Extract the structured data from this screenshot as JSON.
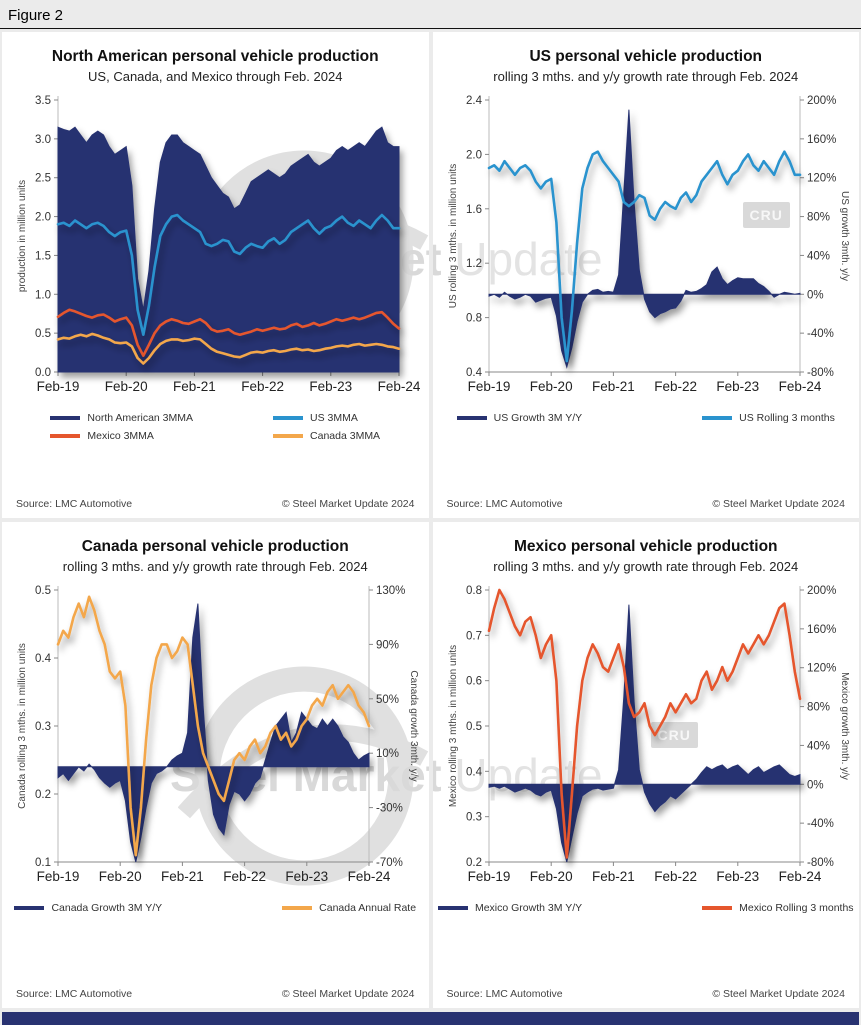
{
  "figure_label": "Figure 2",
  "footer_bar_color": "#283271",
  "watermark": {
    "bold": "Steel Market",
    "light": "Update",
    "cru": "CRU"
  },
  "panels": [
    {
      "title": "North American personal vehicle production",
      "subtitle": "US, Canada, and Mexico through Feb. 2024",
      "source": "Source: LMC Automotive",
      "copyright": "© Steel Market Update 2024"
    },
    {
      "title": "US personal vehicle production",
      "subtitle": "rolling 3 mths. and y/y growth rate through Feb. 2024",
      "source": "Source: LMC Automotive",
      "copyright": "© Steel Market Update 2024"
    },
    {
      "title": "Canada personal vehicle production",
      "subtitle": "rolling 3 mths. and y/y growth rate through Feb. 2024",
      "source": "Source: LMC Automotive",
      "copyright": "© Steel Market Update 2024"
    },
    {
      "title": "Mexico personal vehicle production",
      "subtitle": "rolling 3 mths. and y/y growth rate through Feb. 2024",
      "source": "Source: LMC Automotive",
      "copyright": "© Steel Market Update 2024"
    }
  ],
  "chart_data": [
    {
      "type": "area+line",
      "title": "North American personal vehicle production",
      "subtitle": "US, Canada, and Mexico through Feb. 2024",
      "x_tick_labels": [
        "Feb-19",
        "Feb-20",
        "Feb-21",
        "Feb-22",
        "Feb-23",
        "Feb-24"
      ],
      "x_tick_positions": [
        0,
        12,
        24,
        36,
        48,
        60
      ],
      "left_axis": {
        "label": "production in million units",
        "min": 0,
        "max": 3.5,
        "ticks": [
          0,
          0.5,
          1,
          1.5,
          2,
          2.5,
          3,
          3.5
        ],
        "tick_labels": [
          "0.0",
          "0.5",
          "1.0",
          "1.5",
          "2.0",
          "2.5",
          "3.0",
          "3.5"
        ]
      },
      "right_axis": null,
      "series": [
        {
          "name": "North American 3MMA",
          "type": "area",
          "axis": "left",
          "baseline": 0,
          "color": "#283271",
          "values": [
            3.15,
            3.12,
            3.1,
            3.15,
            3.05,
            2.95,
            3.05,
            3.1,
            3.05,
            2.9,
            2.8,
            2.85,
            2.9,
            2.4,
            1.2,
            0.8,
            1.3,
            2.1,
            2.7,
            2.95,
            3.05,
            3.05,
            2.95,
            2.9,
            2.85,
            2.8,
            2.65,
            2.5,
            2.4,
            2.3,
            2.25,
            2.1,
            2.15,
            2.3,
            2.45,
            2.5,
            2.55,
            2.6,
            2.55,
            2.5,
            2.55,
            2.65,
            2.7,
            2.75,
            2.8,
            2.7,
            2.65,
            2.7,
            2.75,
            2.85,
            2.9,
            2.85,
            2.9,
            2.95,
            2.9,
            3.0,
            3.1,
            3.15,
            2.95,
            2.9,
            2.9
          ]
        },
        {
          "name": "US 3MMA",
          "type": "line",
          "axis": "left",
          "color": "#2a93ce",
          "values": [
            1.9,
            1.92,
            1.88,
            1.95,
            1.9,
            1.85,
            1.9,
            1.92,
            1.88,
            1.8,
            1.75,
            1.8,
            1.82,
            1.5,
            0.8,
            0.48,
            0.85,
            1.35,
            1.75,
            1.9,
            2.0,
            2.02,
            1.95,
            1.9,
            1.85,
            1.8,
            1.65,
            1.62,
            1.65,
            1.7,
            1.68,
            1.55,
            1.52,
            1.6,
            1.65,
            1.62,
            1.6,
            1.68,
            1.72,
            1.65,
            1.7,
            1.8,
            1.85,
            1.9,
            1.95,
            1.85,
            1.78,
            1.85,
            1.88,
            1.95,
            2.0,
            1.92,
            1.88,
            1.95,
            1.9,
            1.85,
            1.95,
            2.02,
            1.95,
            1.85,
            1.85
          ]
        },
        {
          "name": "Mexico 3MMA",
          "type": "line",
          "axis": "left",
          "color": "#e5562d",
          "values": [
            0.71,
            0.76,
            0.8,
            0.78,
            0.75,
            0.72,
            0.7,
            0.73,
            0.74,
            0.7,
            0.65,
            0.68,
            0.7,
            0.6,
            0.35,
            0.21,
            0.35,
            0.5,
            0.6,
            0.65,
            0.68,
            0.66,
            0.63,
            0.62,
            0.65,
            0.68,
            0.63,
            0.55,
            0.52,
            0.53,
            0.55,
            0.5,
            0.48,
            0.5,
            0.52,
            0.55,
            0.53,
            0.55,
            0.57,
            0.55,
            0.56,
            0.6,
            0.62,
            0.58,
            0.6,
            0.63,
            0.6,
            0.62,
            0.65,
            0.68,
            0.66,
            0.68,
            0.7,
            0.68,
            0.7,
            0.73,
            0.76,
            0.77,
            0.7,
            0.62,
            0.56
          ]
        },
        {
          "name": "Canada 3MMA",
          "type": "line",
          "axis": "left",
          "color": "#f3a74b",
          "values": [
            0.42,
            0.44,
            0.43,
            0.46,
            0.48,
            0.46,
            0.49,
            0.47,
            0.44,
            0.42,
            0.38,
            0.37,
            0.38,
            0.33,
            0.18,
            0.11,
            0.18,
            0.28,
            0.36,
            0.4,
            0.42,
            0.42,
            0.4,
            0.41,
            0.43,
            0.42,
            0.36,
            0.3,
            0.26,
            0.24,
            0.22,
            0.2,
            0.19,
            0.22,
            0.25,
            0.26,
            0.25,
            0.27,
            0.28,
            0.26,
            0.27,
            0.29,
            0.3,
            0.28,
            0.29,
            0.27,
            0.28,
            0.3,
            0.31,
            0.33,
            0.34,
            0.33,
            0.35,
            0.36,
            0.34,
            0.35,
            0.36,
            0.35,
            0.33,
            0.32,
            0.3
          ]
        }
      ]
    },
    {
      "type": "area+line",
      "title": "US personal vehicle production",
      "subtitle": "rolling 3 mths. and y/y growth rate through Feb. 2024",
      "x_tick_labels": [
        "Feb-19",
        "Feb-20",
        "Feb-21",
        "Feb-22",
        "Feb-23",
        "Feb-24"
      ],
      "x_tick_positions": [
        0,
        12,
        24,
        36,
        48,
        60
      ],
      "left_axis": {
        "label": "US rolling 3 mths. in million units",
        "min": 0.4,
        "max": 2.4,
        "ticks": [
          0.4,
          0.8,
          1.2,
          1.6,
          2.0,
          2.4
        ],
        "tick_labels": [
          "0.4",
          "0.8",
          "1.2",
          "1.6",
          "2.0",
          "2.4"
        ]
      },
      "right_axis": {
        "label": "US growth 3mth. y/y",
        "min": -80,
        "max": 200,
        "ticks": [
          -80,
          -40,
          0,
          40,
          80,
          120,
          160,
          200
        ],
        "tick_labels": [
          "-80%",
          "-40%",
          "0%",
          "40%",
          "80%",
          "120%",
          "160%",
          "200%"
        ]
      },
      "series": [
        {
          "name": "US Growth 3M Y/Y",
          "type": "area",
          "axis": "right",
          "baseline": 0,
          "color": "#283271",
          "values": [
            -2,
            0,
            -3,
            2,
            -2,
            -5,
            -3,
            0,
            -2,
            -8,
            -6,
            -4,
            -3,
            -22,
            -58,
            -75,
            -55,
            -28,
            -8,
            0,
            4,
            5,
            2,
            3,
            2,
            20,
            105,
            190,
            95,
            25,
            -5,
            -18,
            -24,
            -20,
            -18,
            -15,
            -14,
            -7,
            4,
            2,
            3,
            6,
            10,
            23,
            28,
            16,
            10,
            14,
            17,
            16,
            16,
            16,
            11,
            8,
            3,
            -3,
            0,
            2,
            1,
            0,
            1
          ]
        },
        {
          "name": "US Rolling 3 months",
          "type": "line",
          "axis": "left",
          "color": "#2a93ce",
          "values": [
            1.9,
            1.92,
            1.88,
            1.95,
            1.9,
            1.85,
            1.9,
            1.92,
            1.88,
            1.8,
            1.75,
            1.8,
            1.82,
            1.5,
            0.8,
            0.48,
            0.85,
            1.35,
            1.75,
            1.9,
            2.0,
            2.02,
            1.95,
            1.9,
            1.85,
            1.8,
            1.65,
            1.62,
            1.65,
            1.7,
            1.68,
            1.55,
            1.52,
            1.6,
            1.65,
            1.62,
            1.6,
            1.68,
            1.72,
            1.65,
            1.7,
            1.8,
            1.85,
            1.9,
            1.95,
            1.85,
            1.78,
            1.85,
            1.88,
            1.95,
            2.0,
            1.92,
            1.88,
            1.95,
            1.9,
            1.85,
            1.95,
            2.02,
            1.95,
            1.85,
            1.85
          ]
        }
      ]
    },
    {
      "type": "area+line",
      "title": "Canada personal vehicle production",
      "subtitle": "rolling 3 mths. and y/y growth rate through Feb. 2024",
      "x_tick_labels": [
        "Feb-19",
        "Feb-20",
        "Feb-21",
        "Feb-22",
        "Feb-23",
        "Feb-24"
      ],
      "x_tick_positions": [
        0,
        12,
        24,
        36,
        48,
        60
      ],
      "left_axis": {
        "label": "Canada rolling 3 mths. in million units",
        "min": 0.1,
        "max": 0.5,
        "ticks": [
          0.1,
          0.2,
          0.3,
          0.4,
          0.5
        ],
        "tick_labels": [
          "0.1",
          "0.2",
          "0.3",
          "0.4",
          "0.5"
        ]
      },
      "right_axis": {
        "label": "Canada growth 3mth. y/y",
        "min": -70,
        "max": 130,
        "ticks": [
          -70,
          -30,
          10,
          50,
          90,
          130
        ],
        "tick_labels": [
          "-70%",
          "-30%",
          "10%",
          "50%",
          "90%",
          "130%"
        ]
      },
      "series": [
        {
          "name": "Canada Growth 3M Y/Y",
          "type": "area",
          "axis": "right",
          "baseline": 0,
          "color": "#283271",
          "values": [
            -8,
            -5,
            -10,
            -5,
            0,
            -3,
            2,
            -2,
            -8,
            -12,
            -15,
            -12,
            -10,
            -25,
            -55,
            -70,
            -52,
            -30,
            -12,
            -5,
            -3,
            0,
            5,
            8,
            10,
            25,
            95,
            120,
            45,
            -10,
            -35,
            -45,
            -50,
            -28,
            -18,
            -20,
            -25,
            -20,
            -12,
            -8,
            5,
            18,
            30,
            35,
            40,
            18,
            25,
            40,
            35,
            30,
            28,
            35,
            30,
            35,
            30,
            22,
            18,
            10,
            5,
            8,
            10
          ]
        },
        {
          "name": "Canada Annual Rate",
          "type": "line",
          "axis": "left",
          "color": "#f3a74b",
          "values": [
            0.42,
            0.44,
            0.43,
            0.46,
            0.48,
            0.46,
            0.49,
            0.47,
            0.44,
            0.42,
            0.38,
            0.37,
            0.38,
            0.33,
            0.18,
            0.11,
            0.18,
            0.28,
            0.36,
            0.4,
            0.42,
            0.42,
            0.4,
            0.41,
            0.43,
            0.42,
            0.36,
            0.3,
            0.26,
            0.24,
            0.22,
            0.2,
            0.19,
            0.22,
            0.25,
            0.26,
            0.25,
            0.27,
            0.28,
            0.26,
            0.27,
            0.29,
            0.3,
            0.28,
            0.29,
            0.27,
            0.28,
            0.3,
            0.31,
            0.33,
            0.34,
            0.33,
            0.35,
            0.36,
            0.34,
            0.35,
            0.36,
            0.35,
            0.33,
            0.32,
            0.3
          ]
        }
      ]
    },
    {
      "type": "area+line",
      "title": "Mexico personal vehicle production",
      "subtitle": "rolling 3 mths. and y/y growth rate through Feb. 2024",
      "x_tick_labels": [
        "Feb-19",
        "Feb-20",
        "Feb-21",
        "Feb-22",
        "Feb-23",
        "Feb-24"
      ],
      "x_tick_positions": [
        0,
        12,
        24,
        36,
        48,
        60
      ],
      "left_axis": {
        "label": "Mexico rolling 3 mths. in million units",
        "min": 0.2,
        "max": 0.8,
        "ticks": [
          0.2,
          0.3,
          0.4,
          0.5,
          0.6,
          0.7,
          0.8
        ],
        "tick_labels": [
          "0.2",
          "0.3",
          "0.4",
          "0.5",
          "0.6",
          "0.7",
          "0.8"
        ]
      },
      "right_axis": {
        "label": "Mexico growth 3mth. y/y",
        "min": -80,
        "max": 200,
        "ticks": [
          -80,
          -40,
          0,
          40,
          80,
          120,
          160,
          200
        ],
        "tick_labels": [
          "-80%",
          "-40%",
          "0%",
          "40%",
          "80%",
          "120%",
          "160%",
          "200%"
        ]
      },
      "series": [
        {
          "name": "Mexico Growth 3M Y/Y",
          "type": "area",
          "axis": "right",
          "baseline": 0,
          "color": "#283271",
          "values": [
            -3,
            -2,
            -4,
            -2,
            -5,
            -8,
            -6,
            -4,
            -6,
            -10,
            -12,
            -8,
            -6,
            -25,
            -60,
            -80,
            -55,
            -30,
            -12,
            -8,
            -5,
            -4,
            -6,
            -5,
            -4,
            15,
            90,
            185,
            85,
            15,
            -8,
            -20,
            -28,
            -22,
            -18,
            -12,
            -15,
            -10,
            -5,
            0,
            5,
            12,
            18,
            15,
            18,
            20,
            15,
            18,
            20,
            15,
            10,
            15,
            18,
            12,
            15,
            18,
            20,
            15,
            10,
            8,
            10
          ]
        },
        {
          "name": "Mexico Rolling 3 months",
          "type": "line",
          "axis": "left",
          "color": "#e5562d",
          "values": [
            0.71,
            0.76,
            0.8,
            0.78,
            0.75,
            0.72,
            0.7,
            0.73,
            0.74,
            0.7,
            0.65,
            0.68,
            0.7,
            0.6,
            0.35,
            0.21,
            0.35,
            0.5,
            0.6,
            0.65,
            0.68,
            0.66,
            0.63,
            0.62,
            0.65,
            0.68,
            0.63,
            0.55,
            0.52,
            0.53,
            0.55,
            0.5,
            0.48,
            0.5,
            0.52,
            0.55,
            0.53,
            0.55,
            0.57,
            0.55,
            0.56,
            0.6,
            0.62,
            0.58,
            0.6,
            0.63,
            0.6,
            0.62,
            0.65,
            0.68,
            0.66,
            0.68,
            0.7,
            0.68,
            0.7,
            0.73,
            0.76,
            0.77,
            0.7,
            0.62,
            0.56
          ]
        }
      ]
    }
  ]
}
